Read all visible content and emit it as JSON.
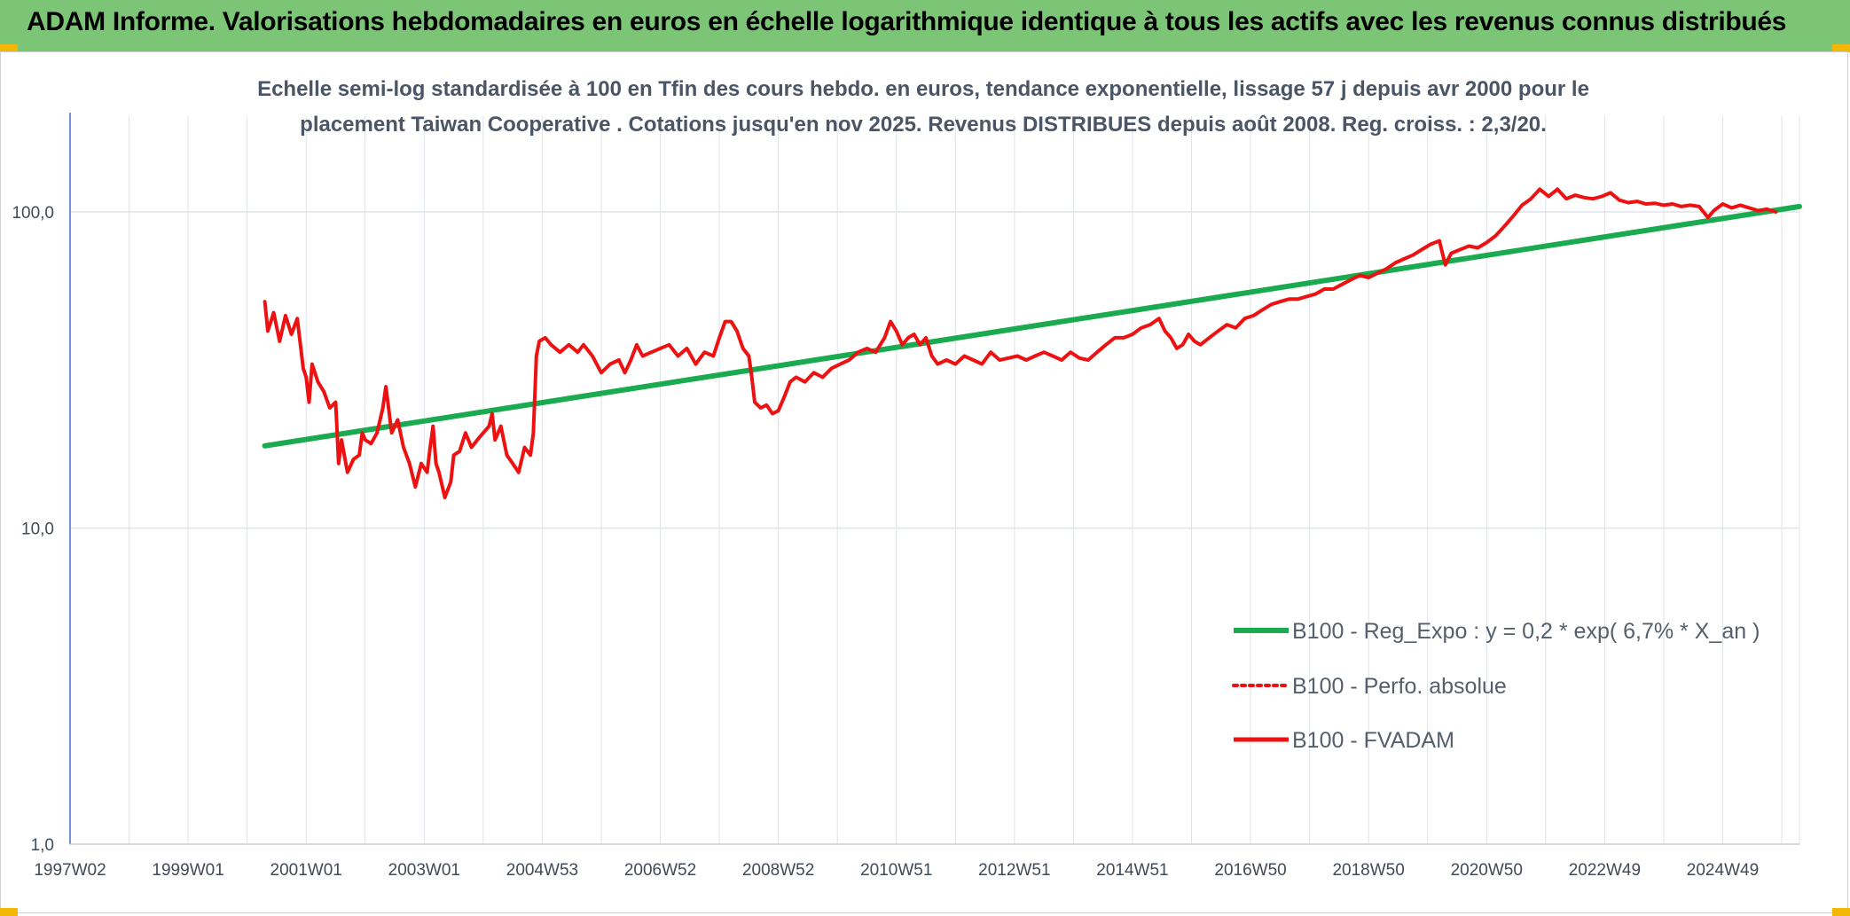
{
  "header": {
    "title": "ADAM Informe. Valorisations hebdomadaires en euros en échelle logarithmique identique à tous les actifs avec les revenus connus distribués"
  },
  "colors": {
    "header_bg": "#7cc576",
    "accent_corner": "#f2b705",
    "trend_line": "#1aaa50",
    "price_line": "#ee1111",
    "grid": "#dde3ea"
  },
  "chart_data": {
    "type": "line",
    "title_line1": "Echelle semi-log standardisée à 100 en Tfin des cours hebdo. en euros, tendance exponentielle, lissage 57 j depuis avr 2000 pour le",
    "title_line2": "placement Taiwan Cooperative . Cotations jusqu'en nov 2025. Revenus DISTRIBUES depuis août 2008. Reg. croiss. : 2,3/20.",
    "y_scale": "log",
    "ylim": [
      1,
      200
    ],
    "y_ticks": [
      {
        "value": 100,
        "label": "100,0"
      },
      {
        "value": 10,
        "label": "10,0"
      },
      {
        "value": 1,
        "label": "1,0"
      }
    ],
    "xlim": [
      1997.0,
      2026.3
    ],
    "x_ticks": [
      {
        "value": 1997.0,
        "label": "1997W02"
      },
      {
        "value": 1999.0,
        "label": "1999W01"
      },
      {
        "value": 2001.0,
        "label": "2001W01"
      },
      {
        "value": 2003.0,
        "label": "2003W01"
      },
      {
        "value": 2005.0,
        "label": "2004W53"
      },
      {
        "value": 2007.0,
        "label": "2006W52"
      },
      {
        "value": 2009.0,
        "label": "2008W52"
      },
      {
        "value": 2011.0,
        "label": "2010W51"
      },
      {
        "value": 2013.0,
        "label": "2012W51"
      },
      {
        "value": 2015.0,
        "label": "2014W51"
      },
      {
        "value": 2017.0,
        "label": "2016W50"
      },
      {
        "value": 2019.0,
        "label": "2018W50"
      },
      {
        "value": 2021.0,
        "label": "2020W50"
      },
      {
        "value": 2023.0,
        "label": "2022W49"
      },
      {
        "value": 2025.0,
        "label": "2024W49"
      }
    ],
    "grid": true,
    "legend_position": "lower-right",
    "series": [
      {
        "name": "B100 - Reg_Expo : y = 0,2 * exp( 6,7% *  X_an )",
        "style": "solid-thick",
        "color": "#1aaa50",
        "points": [
          [
            2000.3,
            18.2
          ],
          [
            2026.3,
            104.0
          ]
        ]
      },
      {
        "name": "B100 - Perfo. absolue",
        "style": "dotted",
        "color": "#ee1111",
        "points": []
      },
      {
        "name": "B100 - FVADAM",
        "style": "solid",
        "color": "#ee1111",
        "points": [
          [
            2000.3,
            52
          ],
          [
            2000.35,
            42
          ],
          [
            2000.45,
            48
          ],
          [
            2000.55,
            39
          ],
          [
            2000.65,
            47
          ],
          [
            2000.75,
            41
          ],
          [
            2000.85,
            46
          ],
          [
            2000.95,
            32
          ],
          [
            2001.0,
            30
          ],
          [
            2001.05,
            25
          ],
          [
            2001.1,
            33
          ],
          [
            2001.2,
            29
          ],
          [
            2001.3,
            27
          ],
          [
            2001.4,
            24
          ],
          [
            2001.5,
            25
          ],
          [
            2001.55,
            16
          ],
          [
            2001.6,
            19
          ],
          [
            2001.7,
            15
          ],
          [
            2001.8,
            16.5
          ],
          [
            2001.9,
            17
          ],
          [
            2001.95,
            20
          ],
          [
            2002.0,
            19
          ],
          [
            2002.1,
            18.5
          ],
          [
            2002.2,
            20
          ],
          [
            2002.3,
            24
          ],
          [
            2002.35,
            28
          ],
          [
            2002.45,
            20
          ],
          [
            2002.55,
            22
          ],
          [
            2002.65,
            18
          ],
          [
            2002.75,
            16
          ],
          [
            2002.85,
            13.5
          ],
          [
            2002.95,
            16
          ],
          [
            2003.05,
            15
          ],
          [
            2003.1,
            18
          ],
          [
            2003.15,
            21
          ],
          [
            2003.2,
            16
          ],
          [
            2003.25,
            15
          ],
          [
            2003.35,
            12.5
          ],
          [
            2003.45,
            14
          ],
          [
            2003.5,
            17
          ],
          [
            2003.6,
            17.5
          ],
          [
            2003.7,
            20
          ],
          [
            2003.8,
            18
          ],
          [
            2003.9,
            19
          ],
          [
            2004.0,
            20
          ],
          [
            2004.1,
            21
          ],
          [
            2004.15,
            23
          ],
          [
            2004.2,
            19
          ],
          [
            2004.3,
            21
          ],
          [
            2004.4,
            17
          ],
          [
            2004.5,
            16
          ],
          [
            2004.6,
            15
          ],
          [
            2004.7,
            18
          ],
          [
            2004.8,
            17
          ],
          [
            2004.85,
            20
          ],
          [
            2004.9,
            35
          ],
          [
            2004.95,
            39
          ],
          [
            2005.05,
            40
          ],
          [
            2005.15,
            38
          ],
          [
            2005.3,
            36
          ],
          [
            2005.45,
            38
          ],
          [
            2005.6,
            36
          ],
          [
            2005.7,
            38
          ],
          [
            2005.85,
            35
          ],
          [
            2006.0,
            31
          ],
          [
            2006.15,
            33
          ],
          [
            2006.3,
            34
          ],
          [
            2006.4,
            31
          ],
          [
            2006.5,
            34
          ],
          [
            2006.6,
            38
          ],
          [
            2006.7,
            35
          ],
          [
            2006.85,
            36
          ],
          [
            2007.0,
            37
          ],
          [
            2007.15,
            38
          ],
          [
            2007.3,
            35
          ],
          [
            2007.45,
            37
          ],
          [
            2007.6,
            33
          ],
          [
            2007.75,
            36
          ],
          [
            2007.9,
            35
          ],
          [
            2008.0,
            40
          ],
          [
            2008.1,
            45
          ],
          [
            2008.2,
            45
          ],
          [
            2008.3,
            42
          ],
          [
            2008.4,
            37
          ],
          [
            2008.5,
            35
          ],
          [
            2008.55,
            30
          ],
          [
            2008.6,
            25
          ],
          [
            2008.7,
            24
          ],
          [
            2008.8,
            24.5
          ],
          [
            2008.9,
            23
          ],
          [
            2009.0,
            23.5
          ],
          [
            2009.1,
            26
          ],
          [
            2009.2,
            29
          ],
          [
            2009.3,
            30
          ],
          [
            2009.45,
            29
          ],
          [
            2009.6,
            31
          ],
          [
            2009.75,
            30
          ],
          [
            2009.9,
            32
          ],
          [
            2010.05,
            33
          ],
          [
            2010.2,
            34
          ],
          [
            2010.35,
            36
          ],
          [
            2010.5,
            37
          ],
          [
            2010.65,
            36
          ],
          [
            2010.8,
            40
          ],
          [
            2010.9,
            45
          ],
          [
            2011.0,
            42
          ],
          [
            2011.1,
            38
          ],
          [
            2011.2,
            40
          ],
          [
            2011.3,
            41
          ],
          [
            2011.4,
            38
          ],
          [
            2011.5,
            40
          ],
          [
            2011.6,
            35
          ],
          [
            2011.7,
            33
          ],
          [
            2011.85,
            34
          ],
          [
            2012.0,
            33
          ],
          [
            2012.15,
            35
          ],
          [
            2012.3,
            34
          ],
          [
            2012.45,
            33
          ],
          [
            2012.6,
            36
          ],
          [
            2012.75,
            34
          ],
          [
            2012.9,
            34.5
          ],
          [
            2013.05,
            35
          ],
          [
            2013.2,
            34
          ],
          [
            2013.35,
            35
          ],
          [
            2013.5,
            36
          ],
          [
            2013.65,
            35
          ],
          [
            2013.8,
            34
          ],
          [
            2013.95,
            36
          ],
          [
            2014.1,
            34.5
          ],
          [
            2014.25,
            34
          ],
          [
            2014.4,
            36
          ],
          [
            2014.55,
            38
          ],
          [
            2014.7,
            40
          ],
          [
            2014.85,
            40
          ],
          [
            2015.0,
            41
          ],
          [
            2015.15,
            43
          ],
          [
            2015.3,
            44
          ],
          [
            2015.45,
            46
          ],
          [
            2015.55,
            42
          ],
          [
            2015.65,
            40
          ],
          [
            2015.75,
            37
          ],
          [
            2015.85,
            38
          ],
          [
            2015.95,
            41
          ],
          [
            2016.05,
            39
          ],
          [
            2016.15,
            38
          ],
          [
            2016.3,
            40
          ],
          [
            2016.45,
            42
          ],
          [
            2016.6,
            44
          ],
          [
            2016.75,
            43
          ],
          [
            2016.9,
            46
          ],
          [
            2017.05,
            47
          ],
          [
            2017.2,
            49
          ],
          [
            2017.35,
            51
          ],
          [
            2017.5,
            52
          ],
          [
            2017.65,
            53
          ],
          [
            2017.8,
            53
          ],
          [
            2017.95,
            54
          ],
          [
            2018.1,
            55
          ],
          [
            2018.25,
            57
          ],
          [
            2018.4,
            57
          ],
          [
            2018.55,
            59
          ],
          [
            2018.7,
            61
          ],
          [
            2018.85,
            63
          ],
          [
            2019.0,
            62
          ],
          [
            2019.15,
            64
          ],
          [
            2019.3,
            66
          ],
          [
            2019.45,
            69
          ],
          [
            2019.6,
            71
          ],
          [
            2019.75,
            73
          ],
          [
            2019.9,
            76
          ],
          [
            2020.05,
            79
          ],
          [
            2020.2,
            81
          ],
          [
            2020.3,
            68
          ],
          [
            2020.4,
            74
          ],
          [
            2020.55,
            76
          ],
          [
            2020.7,
            78
          ],
          [
            2020.85,
            77
          ],
          [
            2021.0,
            80
          ],
          [
            2021.15,
            84
          ],
          [
            2021.3,
            90
          ],
          [
            2021.45,
            97
          ],
          [
            2021.6,
            105
          ],
          [
            2021.75,
            110
          ],
          [
            2021.9,
            118
          ],
          [
            2022.05,
            112
          ],
          [
            2022.2,
            118
          ],
          [
            2022.35,
            110
          ],
          [
            2022.5,
            113
          ],
          [
            2022.65,
            111
          ],
          [
            2022.8,
            110
          ],
          [
            2022.95,
            112
          ],
          [
            2023.1,
            115
          ],
          [
            2023.25,
            109
          ],
          [
            2023.4,
            107
          ],
          [
            2023.55,
            108
          ],
          [
            2023.7,
            106
          ],
          [
            2023.85,
            106.5
          ],
          [
            2024.0,
            105
          ],
          [
            2024.15,
            106
          ],
          [
            2024.3,
            104
          ],
          [
            2024.45,
            105
          ],
          [
            2024.6,
            104
          ],
          [
            2024.75,
            96
          ],
          [
            2024.85,
            101
          ],
          [
            2025.0,
            106
          ],
          [
            2025.15,
            103
          ],
          [
            2025.3,
            105
          ],
          [
            2025.45,
            103
          ],
          [
            2025.6,
            101
          ],
          [
            2025.75,
            102
          ],
          [
            2025.9,
            100
          ]
        ]
      }
    ]
  }
}
